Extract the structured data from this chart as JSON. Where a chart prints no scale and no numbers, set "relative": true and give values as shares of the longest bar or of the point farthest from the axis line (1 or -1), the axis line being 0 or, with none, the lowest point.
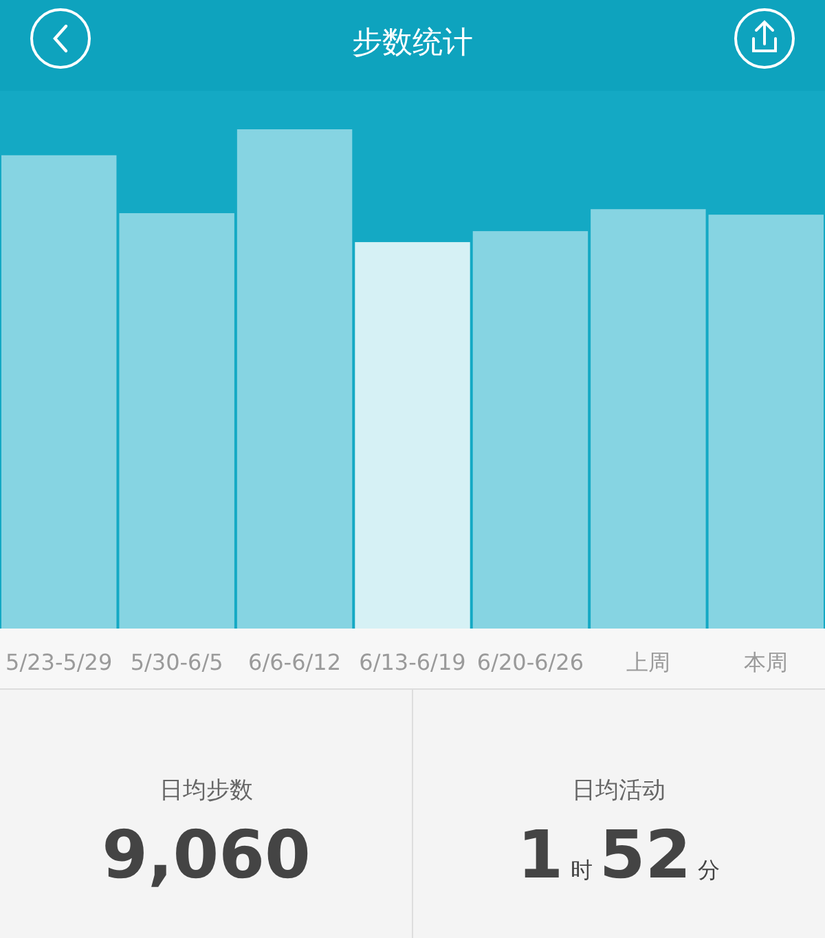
{
  "chart_data": [
    {
      "type": "bar",
      "title": "步数统计",
      "relative": true,
      "categories": [
        "5/23-5/29",
        "5/30-6/5",
        "6/6-6/12",
        "6/13-6/19",
        "6/20-6/26",
        "上周",
        "本周"
      ],
      "values": [
        0.948,
        0.832,
        1,
        0.774,
        0.796,
        0.84,
        0.829
      ],
      "colors": [
        "#86d4e2",
        "#86d4e2",
        "#86d4e2",
        "#d6f1f5",
        "#86d4e2",
        "#86d4e2",
        "#86d4e2"
      ]
    },
    {
      "type": "other",
      "annotations": [
        "日均步数",
        "9,060",
        "日均活动",
        "1时52分"
      ]
    }
  ]
}
